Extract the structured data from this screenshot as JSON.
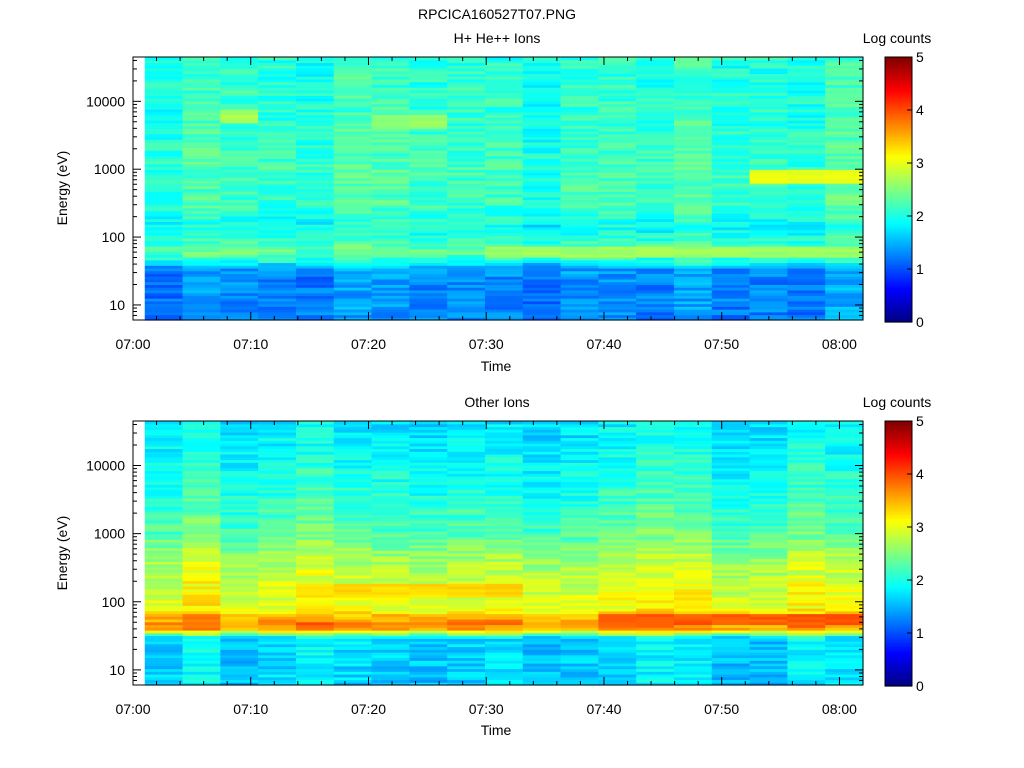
{
  "figure_title": "RPCICA160527T07.PNG",
  "colorscale": {
    "label": "Log counts",
    "min": 0,
    "max": 5,
    "ticks": [
      "0",
      "1",
      "2",
      "3",
      "4",
      "5"
    ],
    "colormap": "jet"
  },
  "chart_data": [
    {
      "type": "heatmap",
      "title": "H+ He++ Ions",
      "xlabel": "Time",
      "ylabel": "Energy (eV)",
      "y_scale": "log",
      "ylim": [
        6,
        45000
      ],
      "y_tick_labels": [
        "10",
        "100",
        "1000",
        "10000"
      ],
      "x_tick_labels": [
        "07:00",
        "07:10",
        "07:20",
        "07:30",
        "07:40",
        "07:50",
        "08:00"
      ],
      "time_range": [
        "07:00",
        "08:02"
      ],
      "data_time_start": "07:01",
      "data_time_end": "08:02",
      "time_bins": 19,
      "energy_bins": 96,
      "pattern": {
        "mean_log_counts_by_energy": [
          {
            "energy_ev": 8,
            "log_counts": 1.3
          },
          {
            "energy_ev": 25,
            "log_counts": 1.3
          },
          {
            "energy_ev": 35,
            "log_counts": 1.4
          },
          {
            "energy_ev": 45,
            "log_counts": 2.0
          },
          {
            "energy_ev": 60,
            "log_counts": 2.35
          },
          {
            "energy_ev": 80,
            "log_counts": 2.2
          },
          {
            "energy_ev": 130,
            "log_counts": 1.9
          },
          {
            "energy_ev": 300,
            "log_counts": 2.15
          },
          {
            "energy_ev": 1000,
            "log_counts": 2.2
          },
          {
            "energy_ev": 5000,
            "log_counts": 2.1
          },
          {
            "energy_ev": 45000,
            "log_counts": 2.05
          }
        ],
        "features": [
          {
            "energy_ev": 800,
            "time_start": "07:53",
            "time_end": "08:02",
            "log_counts": 3.0
          },
          {
            "energy_ev": 60,
            "time_start": "07:30",
            "time_end": "08:02",
            "log_counts": 2.65
          },
          {
            "energy_ev": 6000,
            "time_start": "07:07",
            "time_end": "07:11",
            "log_counts": 2.7
          },
          {
            "energy_ev": 5000,
            "time_start": "07:21",
            "time_end": "07:28",
            "log_counts": 2.6
          }
        ]
      }
    },
    {
      "type": "heatmap",
      "title": "Other Ions",
      "xlabel": "Time",
      "ylabel": "Energy (eV)",
      "y_scale": "log",
      "ylim": [
        6,
        45000
      ],
      "y_tick_labels": [
        "10",
        "100",
        "1000",
        "10000"
      ],
      "x_tick_labels": [
        "07:00",
        "07:10",
        "07:20",
        "07:30",
        "07:40",
        "07:50",
        "08:00"
      ],
      "time_range": [
        "07:00",
        "08:02"
      ],
      "data_time_start": "07:01",
      "data_time_end": "08:02",
      "time_bins": 19,
      "energy_bins": 96,
      "pattern": {
        "mean_log_counts_by_energy": [
          {
            "energy_ev": 8,
            "log_counts": 1.7
          },
          {
            "energy_ev": 30,
            "log_counts": 1.75
          },
          {
            "energy_ev": 40,
            "log_counts": 3.6
          },
          {
            "energy_ev": 50,
            "log_counts": 3.75
          },
          {
            "energy_ev": 65,
            "log_counts": 3.45
          },
          {
            "energy_ev": 80,
            "log_counts": 3.05
          },
          {
            "energy_ev": 150,
            "log_counts": 3.0
          },
          {
            "energy_ev": 400,
            "log_counts": 2.75
          },
          {
            "energy_ev": 1000,
            "log_counts": 2.35
          },
          {
            "energy_ev": 5000,
            "log_counts": 2.05
          },
          {
            "energy_ev": 45000,
            "log_counts": 1.8
          }
        ],
        "features": [
          {
            "energy_ev": 55,
            "time_start": "07:40",
            "time_end": "08:02",
            "log_counts": 3.95
          },
          {
            "energy_ev": 150,
            "time_start": "07:15",
            "time_end": "07:32",
            "log_counts": 3.3
          },
          {
            "energy_ev": 20000,
            "time_start": "07:01",
            "time_end": "07:07",
            "log_counts": 1.2
          },
          {
            "energy_ev": 20000,
            "time_start": "07:18",
            "time_end": "07:22",
            "log_counts": 1.3
          }
        ]
      }
    }
  ]
}
